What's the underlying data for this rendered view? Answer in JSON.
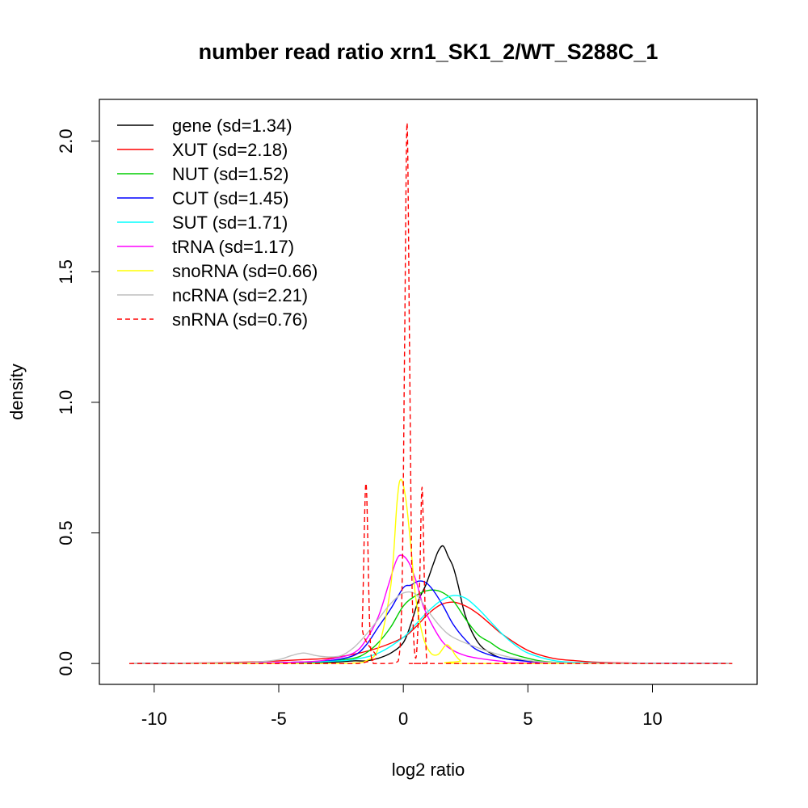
{
  "chart_data": {
    "type": "line",
    "title": "number read ratio xrn1_SK1_2/WT_S288C_1",
    "xlabel": "log2 ratio",
    "ylabel": "density",
    "xlim": [
      -12.2,
      14.2
    ],
    "ylim": [
      -0.08,
      2.16
    ],
    "x_ticks": [
      -10,
      -5,
      0,
      5,
      10
    ],
    "x_tick_labels": [
      "-10",
      "-5",
      "0",
      "5",
      "10"
    ],
    "y_ticks": [
      0.0,
      0.5,
      1.0,
      1.5,
      2.0
    ],
    "y_tick_labels": [
      "0.0",
      "0.5",
      "1.0",
      "1.5",
      "2.0"
    ],
    "grid": false,
    "legend_position": "top-left",
    "series": [
      {
        "name": "gene",
        "legend": "gene (sd=1.34)",
        "color": "#000000",
        "dash": "solid",
        "x": [
          -11,
          -6,
          -3,
          -2,
          -1.5,
          -1,
          -0.5,
          0,
          0.3,
          0.6,
          0.9,
          1.2,
          1.4,
          1.6,
          1.8,
          2.0,
          2.2,
          2.5,
          3,
          3.5,
          4,
          5,
          6,
          7,
          9,
          13.2
        ],
        "y": [
          0,
          0.002,
          0.005,
          0.01,
          0.01,
          0.02,
          0.04,
          0.08,
          0.15,
          0.24,
          0.3,
          0.38,
          0.43,
          0.45,
          0.41,
          0.37,
          0.3,
          0.18,
          0.08,
          0.04,
          0.02,
          0.01,
          0.004,
          0.002,
          0,
          0
        ]
      },
      {
        "name": "XUT",
        "legend": "XUT (sd=2.18)",
        "color": "#ff0000",
        "dash": "solid",
        "x": [
          -11,
          -8,
          -6,
          -5,
          -4,
          -3,
          -2,
          -1,
          0,
          0.5,
          1,
          1.5,
          2,
          2.5,
          3,
          3.5,
          4,
          5,
          6,
          7,
          8,
          10,
          13.2
        ],
        "y": [
          0,
          0.002,
          0.006,
          0.01,
          0.015,
          0.02,
          0.035,
          0.06,
          0.1,
          0.14,
          0.19,
          0.225,
          0.235,
          0.22,
          0.19,
          0.15,
          0.11,
          0.05,
          0.02,
          0.01,
          0.004,
          0.001,
          0
        ]
      },
      {
        "name": "NUT",
        "legend": "NUT (sd=1.52)",
        "color": "#00cd00",
        "dash": "solid",
        "x": [
          -11,
          -6,
          -4,
          -3,
          -2,
          -1.5,
          -1,
          -0.5,
          0,
          0.5,
          1,
          1.5,
          2,
          2.5,
          3,
          3.5,
          4,
          5,
          6,
          8,
          13.2
        ],
        "y": [
          0,
          0.002,
          0.005,
          0.01,
          0.02,
          0.04,
          0.08,
          0.14,
          0.22,
          0.26,
          0.28,
          0.275,
          0.24,
          0.17,
          0.11,
          0.08,
          0.05,
          0.02,
          0.005,
          0.001,
          0
        ]
      },
      {
        "name": "CUT",
        "legend": "CUT (sd=1.45)",
        "color": "#0000ff",
        "dash": "solid",
        "x": [
          -11,
          -6,
          -4,
          -3,
          -2,
          -1.5,
          -1,
          -0.5,
          0,
          0.3,
          0.6,
          0.9,
          1.2,
          1.6,
          2,
          2.5,
          3,
          4,
          5,
          6,
          13.2
        ],
        "y": [
          0,
          0.002,
          0.006,
          0.01,
          0.03,
          0.07,
          0.14,
          0.21,
          0.29,
          0.3,
          0.315,
          0.31,
          0.28,
          0.22,
          0.15,
          0.09,
          0.05,
          0.02,
          0.008,
          0.002,
          0
        ]
      },
      {
        "name": "SUT",
        "legend": "SUT (sd=1.71)",
        "color": "#00ffff",
        "dash": "solid",
        "x": [
          -11,
          -6,
          -4,
          -3,
          -2,
          -1,
          0,
          0.5,
          1,
          1.5,
          2,
          2.5,
          3,
          3.5,
          4,
          4.5,
          5,
          6,
          7,
          9,
          13.2
        ],
        "y": [
          0,
          0.002,
          0.005,
          0.008,
          0.015,
          0.04,
          0.1,
          0.15,
          0.2,
          0.24,
          0.26,
          0.25,
          0.21,
          0.16,
          0.11,
          0.07,
          0.04,
          0.012,
          0.004,
          0.001,
          0
        ]
      },
      {
        "name": "tRNA",
        "legend": "tRNA (sd=1.17)",
        "color": "#ff00ff",
        "dash": "solid",
        "x": [
          -11,
          -6,
          -4,
          -3,
          -2,
          -1.5,
          -1,
          -0.6,
          -0.3,
          -0.1,
          0.2,
          0.5,
          0.8,
          1.2,
          1.6,
          2.0,
          2.5,
          3,
          4,
          5,
          13.2
        ],
        "y": [
          0,
          0.002,
          0.006,
          0.015,
          0.04,
          0.09,
          0.18,
          0.3,
          0.39,
          0.415,
          0.39,
          0.32,
          0.22,
          0.14,
          0.08,
          0.05,
          0.03,
          0.02,
          0.008,
          0.002,
          0
        ]
      },
      {
        "name": "snoRNA",
        "legend": "snoRNA (sd=0.66)",
        "color": "#ffff00",
        "dash": "solid",
        "x": [
          -11,
          -3,
          -2,
          -1.5,
          -1,
          -0.5,
          -0.25,
          -0.1,
          0.1,
          0.3,
          0.5,
          0.8,
          1.1,
          1.4,
          1.7,
          1.9,
          2.1,
          2.3,
          2.5,
          13.2
        ],
        "y": [
          0,
          0,
          0.002,
          0.01,
          0.06,
          0.3,
          0.62,
          0.705,
          0.63,
          0.45,
          0.25,
          0.1,
          0.04,
          0.035,
          0.07,
          0.06,
          0.03,
          0.01,
          0,
          0
        ]
      },
      {
        "name": "ncRNA",
        "legend": "ncRNA (sd=2.21)",
        "color": "#bebebe",
        "dash": "solid",
        "x": [
          -11,
          -7,
          -6,
          -5,
          -4.5,
          -4,
          -3.5,
          -3,
          -2.5,
          -2,
          -1.5,
          -1,
          -0.5,
          0,
          0.5,
          1,
          1.5,
          2,
          3,
          4,
          5,
          6,
          8,
          13.2
        ],
        "y": [
          0,
          0.002,
          0.005,
          0.015,
          0.03,
          0.04,
          0.03,
          0.025,
          0.03,
          0.06,
          0.11,
          0.17,
          0.23,
          0.27,
          0.265,
          0.2,
          0.14,
          0.1,
          0.06,
          0.03,
          0.012,
          0.004,
          0.001,
          0
        ]
      },
      {
        "name": "snRNA",
        "legend": "snRNA (sd=0.76)",
        "color": "#ff0000",
        "dash": "dashed",
        "x": [
          -11,
          -1.8,
          -1.65,
          -1.5,
          -1.35,
          -1.2,
          -0.6,
          -0.2,
          -0.05,
          0.05,
          0.15,
          0.25,
          0.35,
          0.5,
          0.65,
          0.75,
          0.85,
          0.95,
          1.2,
          13.2
        ],
        "y": [
          0,
          0,
          0.15,
          0.69,
          0.15,
          0,
          0,
          0.01,
          0.3,
          1.2,
          2.07,
          1.2,
          0.3,
          0.02,
          0.3,
          0.675,
          0.3,
          0,
          0,
          0
        ]
      }
    ]
  }
}
